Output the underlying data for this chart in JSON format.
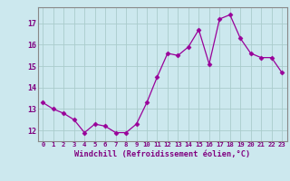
{
  "x": [
    0,
    1,
    2,
    3,
    4,
    5,
    6,
    7,
    8,
    9,
    10,
    11,
    12,
    13,
    14,
    15,
    16,
    17,
    18,
    19,
    20,
    21,
    22,
    23
  ],
  "y": [
    13.3,
    13.0,
    12.8,
    12.5,
    11.9,
    12.3,
    12.2,
    11.9,
    11.9,
    12.3,
    13.3,
    14.5,
    15.6,
    15.5,
    15.9,
    16.7,
    15.1,
    17.2,
    17.4,
    16.3,
    15.6,
    15.4,
    15.4,
    14.7
  ],
  "line_color": "#990099",
  "marker": "D",
  "marker_size": 2.5,
  "bg_color": "#cce8ee",
  "grid_color": "#aacccc",
  "xlabel": "Windchill (Refroidissement éolien,°C)",
  "ylabel_ticks": [
    12,
    13,
    14,
    15,
    16,
    17
  ],
  "xtick_labels": [
    "0",
    "1",
    "2",
    "3",
    "4",
    "5",
    "6",
    "7",
    "8",
    "9",
    "10",
    "11",
    "12",
    "13",
    "14",
    "15",
    "16",
    "17",
    "18",
    "19",
    "20",
    "21",
    "22",
    "23"
  ],
  "ylim": [
    11.5,
    17.75
  ],
  "xlim": [
    -0.5,
    23.5
  ],
  "tick_color": "#800080",
  "label_color": "#800080",
  "spine_color": "#888888"
}
